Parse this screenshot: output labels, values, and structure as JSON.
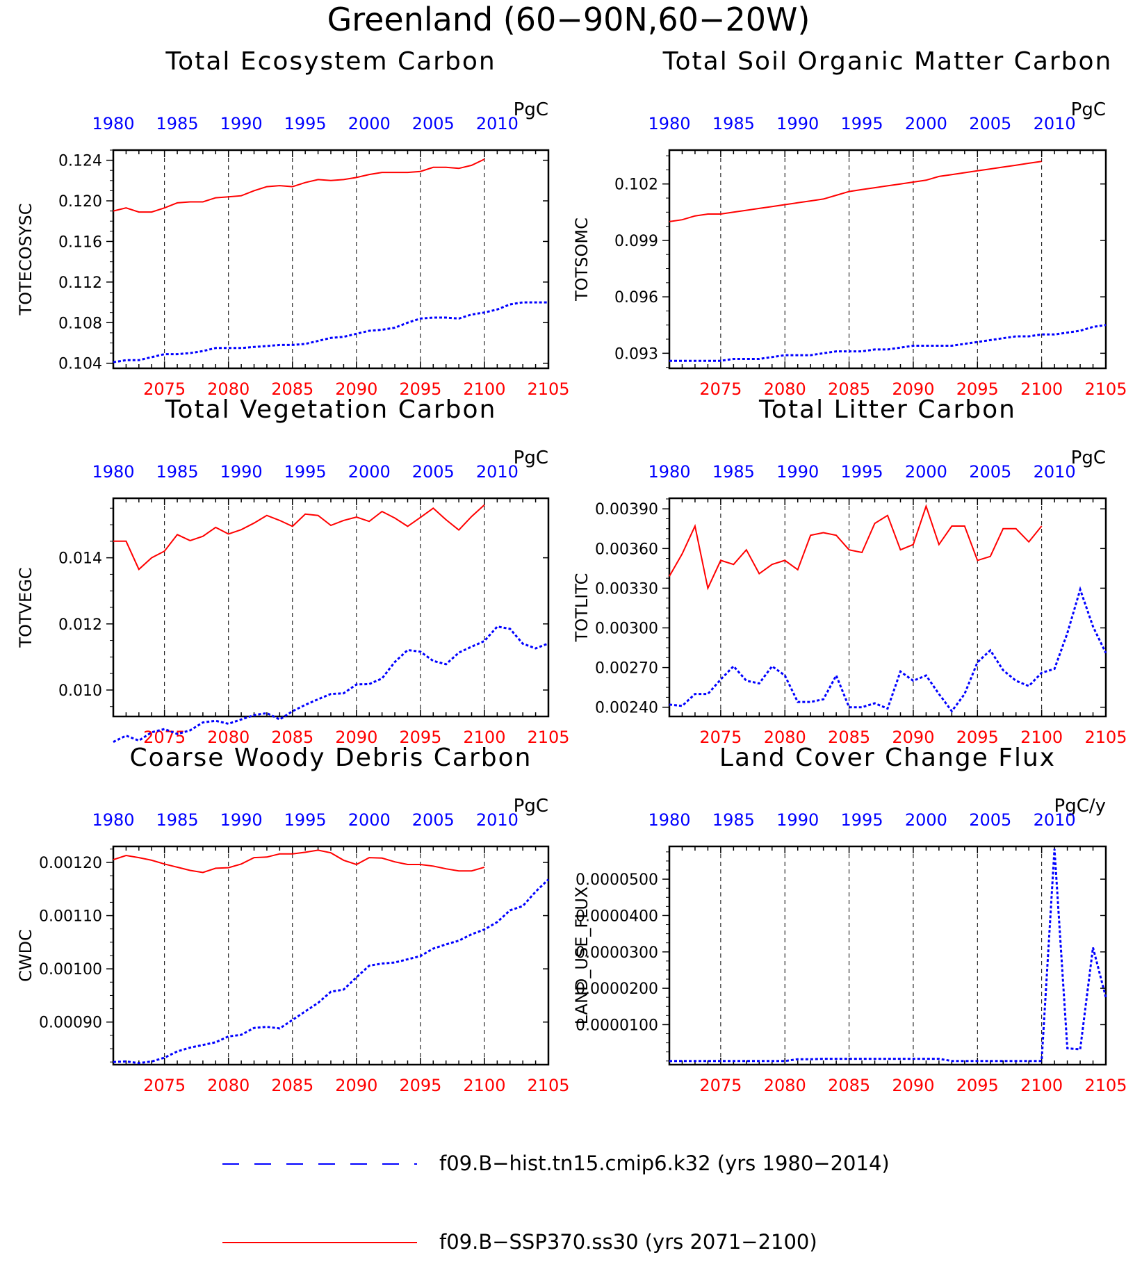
{
  "figure": {
    "title": "Greenland (60−90N,60−20W)",
    "top_axis_color": "#0000ff",
    "bottom_axis_color": "#ff0000",
    "top_ticks": [
      "1980",
      "1985",
      "1990",
      "1995",
      "2000",
      "2005",
      "2010"
    ],
    "bottom_ticks": [
      "2075",
      "2080",
      "2085",
      "2090",
      "2095",
      "2100",
      "2105"
    ]
  },
  "legend": [
    {
      "label": "f09.B−hist.tn15.cmip6.k32 (yrs 1980−2014)",
      "color": "#0000ff",
      "style": "dashed"
    },
    {
      "label": "f09.B−SSP370.ss30 (yrs 2071−2100)",
      "color": "#ff0000",
      "style": "solid"
    }
  ],
  "chart_data": [
    {
      "type": "line",
      "title": "Total Ecosystem Carbon",
      "ylabel": "TOTECOSYSC",
      "units": "PgC",
      "ylim": [
        0.1035,
        0.125
      ],
      "yticks": [
        "0.104",
        "0.108",
        "0.112",
        "0.116",
        "0.120",
        "0.124"
      ],
      "ytick_values": [
        0.104,
        0.108,
        0.112,
        0.116,
        0.12,
        0.124
      ],
      "series": [
        {
          "color": "#0000ff",
          "style": "dashed",
          "x": [
            1980,
            1981,
            1982,
            1983,
            1984,
            1985,
            1986,
            1987,
            1988,
            1989,
            1990,
            1991,
            1992,
            1993,
            1994,
            1995,
            1996,
            1997,
            1998,
            1999,
            2000,
            2001,
            2002,
            2003,
            2004,
            2005,
            2006,
            2007,
            2008,
            2009,
            2010,
            2011,
            2012,
            2013,
            2014
          ],
          "values": [
            0.1041,
            0.1043,
            0.1043,
            0.1046,
            0.1049,
            0.1049,
            0.105,
            0.1052,
            0.1055,
            0.1055,
            0.1055,
            0.1056,
            0.1057,
            0.1058,
            0.1058,
            0.1059,
            0.1062,
            0.1065,
            0.1066,
            0.1069,
            0.1072,
            0.1073,
            0.1075,
            0.108,
            0.1084,
            0.1085,
            0.1085,
            0.1084,
            0.1088,
            0.109,
            0.1093,
            0.1098,
            0.11,
            0.11,
            0.11
          ]
        },
        {
          "color": "#ff0000",
          "style": "solid",
          "x": [
            2071,
            2072,
            2073,
            2074,
            2075,
            2076,
            2077,
            2078,
            2079,
            2080,
            2081,
            2082,
            2083,
            2084,
            2085,
            2086,
            2087,
            2088,
            2089,
            2090,
            2091,
            2092,
            2093,
            2094,
            2095,
            2096,
            2097,
            2098,
            2099,
            2100
          ],
          "values": [
            0.119,
            0.1193,
            0.1189,
            0.1189,
            0.1193,
            0.1198,
            0.1199,
            0.1199,
            0.1203,
            0.1204,
            0.1205,
            0.121,
            0.1214,
            0.1215,
            0.1214,
            0.1218,
            0.1221,
            0.122,
            0.1221,
            0.1223,
            0.1226,
            0.1228,
            0.1228,
            0.1228,
            0.1229,
            0.1233,
            0.1233,
            0.1232,
            0.1235,
            0.1241
          ]
        }
      ]
    },
    {
      "type": "line",
      "title": "Total Soil Organic Matter Carbon",
      "ylabel": "TOTSOMC",
      "units": "PgC",
      "ylim": [
        0.0922,
        0.1038
      ],
      "yticks": [
        "0.093",
        "0.096",
        "0.099",
        "0.102"
      ],
      "ytick_values": [
        0.093,
        0.096,
        0.099,
        0.102
      ],
      "series": [
        {
          "color": "#0000ff",
          "style": "dashed",
          "x": [
            1980,
            1981,
            1982,
            1983,
            1984,
            1985,
            1986,
            1987,
            1988,
            1989,
            1990,
            1991,
            1992,
            1993,
            1994,
            1995,
            1996,
            1997,
            1998,
            1999,
            2000,
            2001,
            2002,
            2003,
            2004,
            2005,
            2006,
            2007,
            2008,
            2009,
            2010,
            2011,
            2012,
            2013,
            2014
          ],
          "values": [
            0.0926,
            0.0926,
            0.0926,
            0.0926,
            0.0926,
            0.0927,
            0.0927,
            0.0927,
            0.0928,
            0.0929,
            0.0929,
            0.0929,
            0.093,
            0.0931,
            0.0931,
            0.0931,
            0.0932,
            0.0932,
            0.0933,
            0.0934,
            0.0934,
            0.0934,
            0.0934,
            0.0935,
            0.0936,
            0.0937,
            0.0938,
            0.0939,
            0.0939,
            0.094,
            0.094,
            0.0941,
            0.0942,
            0.0944,
            0.0945
          ]
        },
        {
          "color": "#ff0000",
          "style": "solid",
          "x": [
            2071,
            2072,
            2073,
            2074,
            2075,
            2076,
            2077,
            2078,
            2079,
            2080,
            2081,
            2082,
            2083,
            2084,
            2085,
            2086,
            2087,
            2088,
            2089,
            2090,
            2091,
            2092,
            2093,
            2094,
            2095,
            2096,
            2097,
            2098,
            2099,
            2100
          ],
          "values": [
            0.1,
            0.1001,
            0.1003,
            0.1004,
            0.1004,
            0.1005,
            0.1006,
            0.1007,
            0.1008,
            0.1009,
            0.101,
            0.1011,
            0.1012,
            0.1014,
            0.1016,
            0.1017,
            0.1018,
            0.1019,
            0.102,
            0.1021,
            0.1022,
            0.1024,
            0.1025,
            0.1026,
            0.1027,
            0.1028,
            0.1029,
            0.103,
            0.1031,
            0.1032
          ]
        }
      ]
    },
    {
      "type": "line",
      "title": "Total Vegetation Carbon",
      "ylabel": "TOTVEGC",
      "units": "PgC",
      "ylim": [
        0.0092,
        0.0158
      ],
      "yticks": [
        "0.010",
        "0.012",
        "0.014"
      ],
      "ytick_values": [
        0.01,
        0.012,
        0.014
      ],
      "series": [
        {
          "color": "#0000ff",
          "style": "dashed",
          "x": [
            1980,
            1981,
            1982,
            1983,
            1984,
            1985,
            1986,
            1987,
            1988,
            1989,
            1990,
            1991,
            1992,
            1993,
            1994,
            1995,
            1996,
            1997,
            1998,
            1999,
            2000,
            2001,
            2002,
            2003,
            2004,
            2005,
            2006,
            2007,
            2008,
            2009,
            2010,
            2011,
            2012,
            2013,
            2014
          ],
          "values": [
            0.00843,
            0.00862,
            0.00847,
            0.00872,
            0.00882,
            0.00867,
            0.00878,
            0.00902,
            0.00907,
            0.00898,
            0.00911,
            0.00924,
            0.0093,
            0.00911,
            0.00936,
            0.00955,
            0.00972,
            0.00988,
            0.0099,
            0.01017,
            0.01018,
            0.01035,
            0.01085,
            0.01121,
            0.01116,
            0.01088,
            0.01078,
            0.01113,
            0.01131,
            0.01148,
            0.01192,
            0.01185,
            0.0114,
            0.01126,
            0.01141
          ]
        },
        {
          "color": "#ff0000",
          "style": "solid",
          "x": [
            2071,
            2072,
            2073,
            2074,
            2075,
            2076,
            2077,
            2078,
            2079,
            2080,
            2081,
            2082,
            2083,
            2084,
            2085,
            2086,
            2087,
            2088,
            2089,
            2090,
            2091,
            2092,
            2093,
            2094,
            2095,
            2096,
            2097,
            2098,
            2099,
            2100
          ],
          "values": [
            0.0145,
            0.0145,
            0.01365,
            0.014,
            0.0142,
            0.0147,
            0.01452,
            0.01465,
            0.01492,
            0.01472,
            0.01485,
            0.01505,
            0.01528,
            0.01513,
            0.01495,
            0.01532,
            0.01528,
            0.01498,
            0.01513,
            0.01523,
            0.0151,
            0.0154,
            0.0152,
            0.01495,
            0.01522,
            0.0155,
            0.01515,
            0.01484,
            0.01525,
            0.0156
          ]
        }
      ]
    },
    {
      "type": "line",
      "title": "Total Litter Carbon",
      "ylabel": "TOTLITC",
      "units": "PgC",
      "ylim": [
        0.00233,
        0.00398
      ],
      "yticks": [
        "0.00240",
        "0.00270",
        "0.00300",
        "0.00330",
        "0.00360",
        "0.00390"
      ],
      "ytick_values": [
        0.0024,
        0.0027,
        0.003,
        0.0033,
        0.0036,
        0.0039
      ],
      "series": [
        {
          "color": "#0000ff",
          "style": "dashed",
          "x": [
            1980,
            1981,
            1982,
            1983,
            1984,
            1985,
            1986,
            1987,
            1988,
            1989,
            1990,
            1991,
            1992,
            1993,
            1994,
            1995,
            1996,
            1997,
            1998,
            1999,
            2000,
            2001,
            2002,
            2003,
            2004,
            2005,
            2006,
            2007,
            2008,
            2009,
            2010,
            2011,
            2012,
            2013,
            2014
          ],
          "values": [
            0.00242,
            0.00241,
            0.0025,
            0.0025,
            0.00261,
            0.00271,
            0.0026,
            0.00258,
            0.00271,
            0.00264,
            0.00244,
            0.00244,
            0.00246,
            0.00264,
            0.0024,
            0.0024,
            0.00243,
            0.00239,
            0.00267,
            0.0026,
            0.00264,
            0.0025,
            0.00237,
            0.0025,
            0.00274,
            0.00283,
            0.00268,
            0.0026,
            0.00256,
            0.00266,
            0.00269,
            0.00296,
            0.00329,
            0.00301,
            0.00281
          ]
        },
        {
          "color": "#ff0000",
          "style": "solid",
          "x": [
            2071,
            2072,
            2073,
            2074,
            2075,
            2076,
            2077,
            2078,
            2079,
            2080,
            2081,
            2082,
            2083,
            2084,
            2085,
            2086,
            2087,
            2088,
            2089,
            2090,
            2091,
            2092,
            2093,
            2094,
            2095,
            2096,
            2097,
            2098,
            2099,
            2100
          ],
          "values": [
            0.00339,
            0.00356,
            0.00377,
            0.0033,
            0.00351,
            0.00348,
            0.00359,
            0.00341,
            0.00348,
            0.00351,
            0.00344,
            0.0037,
            0.00372,
            0.0037,
            0.00359,
            0.00357,
            0.00379,
            0.00385,
            0.00359,
            0.00363,
            0.00392,
            0.00363,
            0.00377,
            0.00377,
            0.00351,
            0.00354,
            0.00375,
            0.00375,
            0.00365,
            0.00377
          ]
        }
      ]
    },
    {
      "type": "line",
      "title": "Coarse Woody Debris Carbon",
      "ylabel": "CWDC",
      "units": "PgC",
      "ylim": [
        0.00082,
        0.00123
      ],
      "yticks": [
        "0.00090",
        "0.00100",
        "0.00110",
        "0.00120"
      ],
      "ytick_values": [
        0.0009,
        0.001,
        0.0011,
        0.0012
      ],
      "series": [
        {
          "color": "#0000ff",
          "style": "dashed",
          "x": [
            1980,
            1981,
            1982,
            1983,
            1984,
            1985,
            1986,
            1987,
            1988,
            1989,
            1990,
            1991,
            1992,
            1993,
            1994,
            1995,
            1996,
            1997,
            1998,
            1999,
            2000,
            2001,
            2002,
            2003,
            2004,
            2005,
            2006,
            2007,
            2008,
            2009,
            2010,
            2011,
            2012,
            2013,
            2014
          ],
          "values": [
            0.000825,
            0.000826,
            0.000823,
            0.000826,
            0.000833,
            0.000845,
            0.000852,
            0.000857,
            0.000862,
            0.000873,
            0.000876,
            0.000889,
            0.000891,
            0.000888,
            0.000904,
            0.00092,
            0.000936,
            0.000957,
            0.000961,
            0.000984,
            0.001006,
            0.00101,
            0.001012,
            0.001018,
            0.001024,
            0.001038,
            0.001046,
            0.001053,
            0.001065,
            0.001074,
            0.001088,
            0.00111,
            0.001118,
            0.001145,
            0.001168
          ]
        },
        {
          "color": "#ff0000",
          "style": "solid",
          "x": [
            2071,
            2072,
            2073,
            2074,
            2075,
            2076,
            2077,
            2078,
            2079,
            2080,
            2081,
            2082,
            2083,
            2084,
            2085,
            2086,
            2087,
            2088,
            2089,
            2090,
            2091,
            2092,
            2093,
            2094,
            2095,
            2096,
            2097,
            2098,
            2099,
            2100
          ],
          "values": [
            0.001205,
            0.001213,
            0.001209,
            0.001204,
            0.001197,
            0.001191,
            0.001185,
            0.001181,
            0.001189,
            0.00119,
            0.001197,
            0.001209,
            0.00121,
            0.001216,
            0.001216,
            0.001219,
            0.001223,
            0.001218,
            0.001204,
            0.001196,
            0.001209,
            0.001208,
            0.001201,
            0.001196,
            0.001196,
            0.001193,
            0.001188,
            0.001184,
            0.001184,
            0.001191
          ]
        }
      ]
    },
    {
      "type": "line",
      "title": "Land Cover Change Flux",
      "ylabel": "LAND_USE_FLUX",
      "units": "PgC/y",
      "ylim": [
        -1e-06,
        5.9e-05
      ],
      "yticks": [
        "0.0000100",
        "0.0000200",
        "0.0000300",
        "0.0000400",
        "0.0000500"
      ],
      "ytick_values": [
        1e-05,
        2e-05,
        3e-05,
        4e-05,
        5e-05
      ],
      "series": [
        {
          "color": "#0000ff",
          "style": "dashed",
          "x": [
            1980,
            1981,
            1982,
            1983,
            1984,
            1985,
            1986,
            1987,
            1988,
            1989,
            1990,
            1991,
            1992,
            1993,
            1994,
            1995,
            1996,
            1997,
            1998,
            1999,
            2000,
            2001,
            2002,
            2003,
            2004,
            2005,
            2006,
            2007,
            2008,
            2009,
            2010,
            2011,
            2012,
            2013,
            2014
          ],
          "values": [
            0.0,
            0.0,
            0.0,
            0.0,
            0.0,
            0.0,
            0.0,
            0.0,
            0.0,
            0.0,
            5e-07,
            5e-07,
            6e-07,
            6e-07,
            6e-07,
            6e-07,
            6e-07,
            6e-07,
            6e-07,
            6e-07,
            6e-07,
            6e-07,
            0.0,
            0.0,
            0.0,
            0.0,
            0.0,
            0.0,
            0.0,
            0.0,
            5.83e-05,
            3.5e-06,
            3.2e-06,
            3.12e-05,
            1.75e-05
          ]
        }
      ]
    }
  ]
}
